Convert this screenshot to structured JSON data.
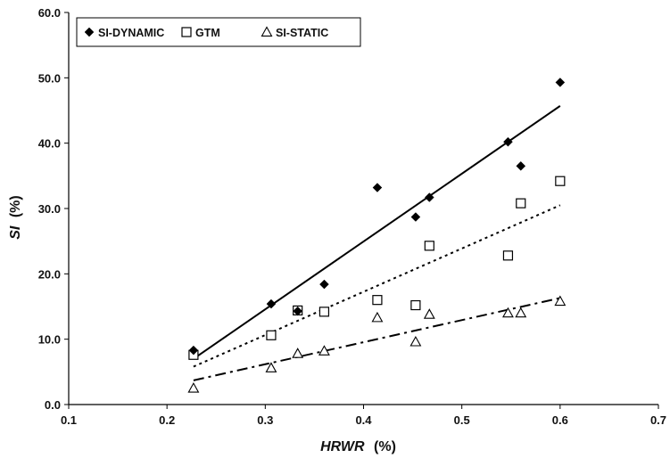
{
  "chart_data": {
    "type": "scatter",
    "xlabel_var": "HRWR",
    "xlabel_unit": "(%)",
    "ylabel_var": "SI",
    "ylabel_unit": "(%)",
    "xlim": [
      0.1,
      0.7
    ],
    "ylim": [
      0,
      60
    ],
    "x_ticks": [
      "0.1",
      "0.2",
      "0.3",
      "0.4",
      "0.5",
      "0.6",
      "0.7"
    ],
    "y_ticks": [
      "0.0",
      "10.0",
      "20.0",
      "30.0",
      "40.0",
      "50.0",
      "60.0"
    ],
    "x_tick_values": [
      0.1,
      0.2,
      0.3,
      0.4,
      0.5,
      0.6,
      0.7
    ],
    "y_tick_values": [
      0,
      10,
      20,
      30,
      40,
      50,
      60
    ],
    "grid": false,
    "legend_position": "top-left",
    "series": [
      {
        "name": "SI-DYNAMIC",
        "marker": "filled-diamond",
        "color": "#000000",
        "points": [
          [
            0.227,
            8.3
          ],
          [
            0.306,
            15.4
          ],
          [
            0.333,
            14.3
          ],
          [
            0.36,
            18.4
          ],
          [
            0.414,
            33.2
          ],
          [
            0.453,
            28.7
          ],
          [
            0.467,
            31.7
          ],
          [
            0.547,
            40.2
          ],
          [
            0.56,
            36.5
          ],
          [
            0.6,
            49.3
          ]
        ],
        "trendline": {
          "style": "solid",
          "x": [
            0.227,
            0.6
          ],
          "y": [
            7.0,
            45.7
          ]
        }
      },
      {
        "name": "GTM",
        "marker": "open-square",
        "color": "#000000",
        "points": [
          [
            0.227,
            7.6
          ],
          [
            0.306,
            10.6
          ],
          [
            0.333,
            14.4
          ],
          [
            0.36,
            14.2
          ],
          [
            0.414,
            16.0
          ],
          [
            0.453,
            15.2
          ],
          [
            0.467,
            24.3
          ],
          [
            0.547,
            22.8
          ],
          [
            0.56,
            30.8
          ],
          [
            0.6,
            34.2
          ]
        ],
        "trendline": {
          "style": "dotted",
          "x": [
            0.227,
            0.6
          ],
          "y": [
            5.8,
            30.5
          ]
        }
      },
      {
        "name": "SI-STATIC",
        "marker": "open-triangle",
        "color": "#000000",
        "points": [
          [
            0.227,
            2.5
          ],
          [
            0.306,
            5.6
          ],
          [
            0.333,
            7.8
          ],
          [
            0.36,
            8.2
          ],
          [
            0.414,
            13.3
          ],
          [
            0.453,
            9.6
          ],
          [
            0.467,
            13.8
          ],
          [
            0.547,
            14.0
          ],
          [
            0.56,
            14.0
          ],
          [
            0.6,
            15.8
          ]
        ],
        "trendline": {
          "style": "dash-dot",
          "x": [
            0.227,
            0.6
          ],
          "y": [
            3.7,
            16.3
          ]
        }
      }
    ]
  }
}
